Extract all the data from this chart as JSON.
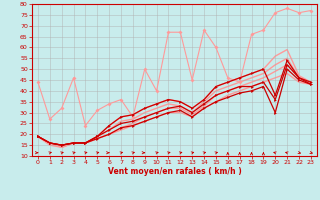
{
  "xlabel": "Vent moyen/en rafales ( km/h )",
  "background_color": "#c8ecec",
  "grid_color": "#b0b0b0",
  "xlim": [
    -0.5,
    23.5
  ],
  "ylim": [
    10,
    80
  ],
  "yticks": [
    10,
    15,
    20,
    25,
    30,
    35,
    40,
    45,
    50,
    55,
    60,
    65,
    70,
    75,
    80
  ],
  "xticks": [
    0,
    1,
    2,
    3,
    4,
    5,
    6,
    7,
    8,
    9,
    10,
    11,
    12,
    13,
    14,
    15,
    16,
    17,
    18,
    19,
    20,
    21,
    22,
    23
  ],
  "series_light": [
    {
      "y": [
        44,
        27,
        32,
        46,
        24,
        31,
        34,
        36,
        28,
        50,
        40,
        67,
        67,
        45,
        68,
        60,
        46,
        44,
        66,
        68,
        76,
        78,
        76,
        77
      ],
      "marker": true
    },
    {
      "y": [
        19,
        16,
        14,
        16,
        16,
        18,
        20,
        22,
        24,
        26,
        28,
        30,
        30,
        28,
        32,
        35,
        38,
        40,
        42,
        44,
        46,
        48,
        44,
        43
      ],
      "marker": false
    },
    {
      "y": [
        19,
        16,
        14,
        16,
        16,
        18,
        20,
        23,
        25,
        28,
        30,
        32,
        32,
        29,
        33,
        38,
        40,
        42,
        44,
        46,
        49,
        52,
        46,
        44
      ],
      "marker": false
    },
    {
      "y": [
        19,
        15,
        14,
        16,
        16,
        19,
        22,
        26,
        27,
        30,
        32,
        34,
        33,
        30,
        35,
        40,
        42,
        44,
        46,
        48,
        52,
        55,
        46,
        44
      ],
      "marker": false
    },
    {
      "y": [
        19,
        16,
        15,
        16,
        16,
        19,
        24,
        28,
        29,
        32,
        34,
        36,
        35,
        32,
        36,
        42,
        44,
        46,
        48,
        50,
        56,
        59,
        47,
        44
      ],
      "marker": false
    }
  ],
  "series_dark": [
    {
      "y": [
        19,
        16,
        15,
        16,
        16,
        19,
        24,
        28,
        29,
        32,
        34,
        36,
        35,
        32,
        36,
        42,
        44,
        46,
        48,
        50,
        38,
        54,
        46,
        43
      ]
    },
    {
      "y": [
        19,
        16,
        15,
        16,
        16,
        19,
        22,
        25,
        26,
        28,
        30,
        32,
        33,
        30,
        34,
        38,
        40,
        42,
        42,
        44,
        36,
        52,
        46,
        44
      ]
    },
    {
      "y": [
        19,
        16,
        15,
        16,
        16,
        18,
        20,
        23,
        24,
        26,
        28,
        30,
        31,
        28,
        32,
        35,
        37,
        39,
        40,
        42,
        30,
        50,
        45,
        43
      ]
    }
  ],
  "light_color": "#ff9999",
  "dark_color": "#cc0000",
  "arrow_angles": [
    90,
    45,
    45,
    45,
    45,
    45,
    90,
    45,
    45,
    90,
    45,
    45,
    45,
    45,
    45,
    45,
    0,
    0,
    0,
    0,
    315,
    315,
    135,
    135
  ]
}
